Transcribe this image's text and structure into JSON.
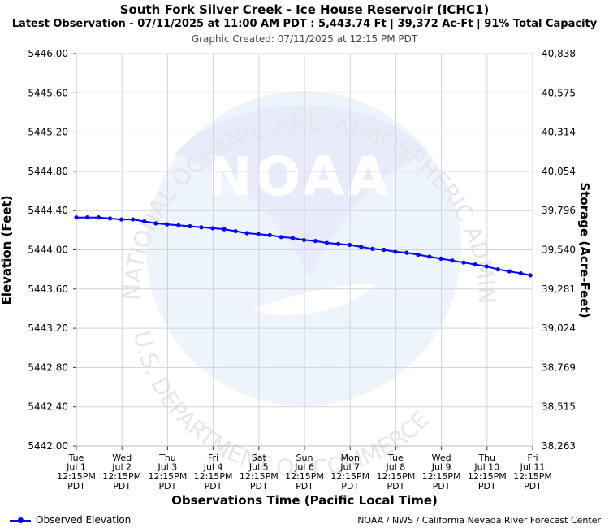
{
  "header": {
    "title": "South Fork Silver Creek - Ice House Reservoir (ICHC1)",
    "subtitle": "Latest Observation - 07/11/2025 at 11:00 AM PDT : 5,443.74 Ft | 39,372 Ac-Ft | 91% Total Capacity",
    "created": "Graphic Created: 07/11/2025 at 12:15 PM PDT"
  },
  "watermark": {
    "logo_text": "NOAA",
    "ring_top": "NATIONAL OCEANIC AND ATMOSPHERIC ADMINISTRATION",
    "ring_bottom": "U.S. DEPARTMENT OF COMMERCE",
    "fill_color": "#e8ecfa",
    "inner_color": "#eef4fc"
  },
  "legend": {
    "label": "Observed Elevation"
  },
  "credit": "NOAA / NWS / California Nevada River Forecast Center",
  "chart_data": {
    "type": "line",
    "xlabel": "Observations Time (Pacific Local Time)",
    "ylabel": "Elevation (Feet)",
    "y2label": "Storage (Acre-Feet)",
    "ylim": [
      5442.0,
      5446.0
    ],
    "y_ticks": [
      "5446.00",
      "5445.60",
      "5445.20",
      "5444.80",
      "5444.40",
      "5444.00",
      "5443.60",
      "5443.20",
      "5442.80",
      "5442.40",
      "5442.00"
    ],
    "y2_ticks": [
      "40,838",
      "40,575",
      "40,314",
      "40,054",
      "39,796",
      "39,540",
      "39,281",
      "39,024",
      "38,769",
      "38,515",
      "38,263"
    ],
    "x_ticks": [
      [
        "Tue",
        "Jul 1",
        "12:15PM",
        "PDT"
      ],
      [
        "Wed",
        "Jul 2",
        "12:15PM",
        "PDT"
      ],
      [
        "Thu",
        "Jul 3",
        "12:15PM",
        "PDT"
      ],
      [
        "Fri",
        "Jul 4",
        "12:15PM",
        "PDT"
      ],
      [
        "Sat",
        "Jul 5",
        "12:15PM",
        "PDT"
      ],
      [
        "Sun",
        "Jul 6",
        "12:15PM",
        "PDT"
      ],
      [
        "Mon",
        "Jul 7",
        "12:15PM",
        "PDT"
      ],
      [
        "Tue",
        "Jul 8",
        "12:15PM",
        "PDT"
      ],
      [
        "Wed",
        "Jul 9",
        "12:15PM",
        "PDT"
      ],
      [
        "Thu",
        "Jul 10",
        "12:15PM",
        "PDT"
      ],
      [
        "Fri",
        "Jul 11",
        "12:15PM",
        "PDT"
      ]
    ],
    "grid": true,
    "legend_position": "bottom-left",
    "series": [
      {
        "name": "Observed Elevation",
        "color": "#0000ff",
        "x": [
          "2025-07-01 12:15",
          "2025-07-01 18:00",
          "2025-07-02 00:00",
          "2025-07-02 06:00",
          "2025-07-02 12:00",
          "2025-07-02 18:00",
          "2025-07-03 00:00",
          "2025-07-03 06:00",
          "2025-07-03 12:00",
          "2025-07-03 18:00",
          "2025-07-04 00:00",
          "2025-07-04 06:00",
          "2025-07-04 12:00",
          "2025-07-04 18:00",
          "2025-07-05 00:00",
          "2025-07-05 06:00",
          "2025-07-05 12:00",
          "2025-07-05 18:00",
          "2025-07-06 00:00",
          "2025-07-06 06:00",
          "2025-07-06 12:00",
          "2025-07-06 18:00",
          "2025-07-07 00:00",
          "2025-07-07 06:00",
          "2025-07-07 12:00",
          "2025-07-07 18:00",
          "2025-07-08 00:00",
          "2025-07-08 06:00",
          "2025-07-08 12:00",
          "2025-07-08 18:00",
          "2025-07-09 00:00",
          "2025-07-09 06:00",
          "2025-07-09 12:00",
          "2025-07-09 18:00",
          "2025-07-10 00:00",
          "2025-07-10 06:00",
          "2025-07-10 12:00",
          "2025-07-10 18:00",
          "2025-07-11 00:00",
          "2025-07-11 06:00",
          "2025-07-11 11:00"
        ],
        "values": [
          5444.33,
          5444.33,
          5444.33,
          5444.32,
          5444.31,
          5444.31,
          5444.29,
          5444.27,
          5444.26,
          5444.25,
          5444.24,
          5444.23,
          5444.22,
          5444.21,
          5444.19,
          5444.17,
          5444.16,
          5444.15,
          5444.13,
          5444.12,
          5444.1,
          5444.09,
          5444.07,
          5444.06,
          5444.05,
          5444.03,
          5444.01,
          5444.0,
          5443.98,
          5443.97,
          5443.95,
          5443.93,
          5443.91,
          5443.89,
          5443.87,
          5443.85,
          5443.83,
          5443.8,
          5443.78,
          5443.76,
          5443.74
        ]
      }
    ]
  }
}
